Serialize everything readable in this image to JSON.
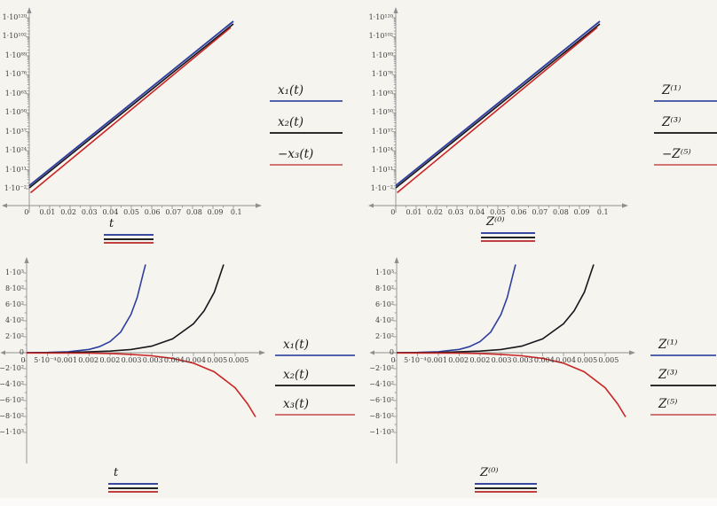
{
  "background": "#f6f4ef",
  "colors": {
    "axis": "#8f8f8f",
    "tick_text": "#3c3c3c",
    "curve_blue": "#2f3f9f",
    "curve_black": "#17171c",
    "curve_red": "#c92626",
    "legend_blue": "#5163ac",
    "legend_black": "#2d2d2d",
    "legend_red": "#d27474",
    "swatch_blue": "#39489f",
    "swatch_black": "#222222",
    "swatch_red": "#c04040"
  },
  "panels": [
    {
      "id": "top-left",
      "y_ticks": [
        "1·10¹²⁰",
        "1·10¹⁰²",
        "1·10⁸⁹",
        "1·10⁷⁶",
        "1·10⁶³",
        "1·10⁵⁰",
        "1·10³⁷",
        "1·10²⁴",
        "1·10¹¹",
        "1·10⁻²"
      ],
      "x_ticks": [
        "0",
        "0.01",
        "0.02",
        "0.03",
        "0.04",
        "0.05",
        "0.06",
        "0.07",
        "0.08",
        "0.09",
        "0.1"
      ],
      "legend": [
        {
          "label": "x₁(t)",
          "color": "#5163ac"
        },
        {
          "label": "x₂(t)",
          "color": "#2d2d2d"
        },
        {
          "label": "−x₃(t)",
          "color": "#d27474"
        }
      ],
      "axis_label": "t"
    },
    {
      "id": "top-right",
      "y_ticks": [
        "1·10¹²⁰",
        "1·10¹⁰²",
        "1·10⁸⁹",
        "1·10⁷⁶",
        "1·10⁶³",
        "1·10⁵⁰",
        "1·10³⁷",
        "1·10²⁴",
        "1·10¹¹",
        "1·10⁻²"
      ],
      "x_ticks": [
        "0",
        "0.01",
        "0.02",
        "0.03",
        "0.04",
        "0.05",
        "0.06",
        "0.07",
        "0.08",
        "0.09",
        "0.1"
      ],
      "legend": [
        {
          "label": "Z⁽¹⁾",
          "color": "#5163ac"
        },
        {
          "label": "Z⁽³⁾",
          "color": "#2d2d2d"
        },
        {
          "label": "−Z⁽⁵⁾",
          "color": "#d27474"
        }
      ],
      "axis_label": "Z⁽⁰⁾"
    },
    {
      "id": "bottom-left",
      "y_ticks": [
        "1·10³",
        "8·10²",
        "6·10²",
        "4·10²",
        "2·10²",
        "0",
        "−2·10²",
        "−4·10²",
        "−6·10²",
        "−8·10²",
        "−1·10³"
      ],
      "x_ticks": [
        "0",
        "5·10⁻⁴",
        "0.001",
        "0.002",
        "0.002",
        "0.003",
        "0.003",
        "0.004",
        "0.004",
        "0.005",
        "0.005"
      ],
      "legend": [
        {
          "label": "x₁(t)",
          "color": "#5163ac"
        },
        {
          "label": "x₂(t)",
          "color": "#2d2d2d"
        },
        {
          "label": "x₃(t)",
          "color": "#d27474"
        }
      ],
      "axis_label": "t"
    },
    {
      "id": "bottom-right",
      "y_ticks": [
        "1·10³",
        "8·10²",
        "6·10²",
        "4·10²",
        "2·10²",
        "0",
        "−2·10²",
        "−4·10²",
        "−6·10²",
        "−8·10²",
        "−1·10³"
      ],
      "x_ticks": [
        "0",
        "5·10⁻⁴",
        "0.001",
        "0.002",
        "0.002",
        "0.003",
        "0.003",
        "0.004",
        "0.004",
        "0.005",
        "0.005"
      ],
      "legend": [
        {
          "label": "Z⁽¹⁾",
          "color": "#5163ac"
        },
        {
          "label": "Z⁽³⁾",
          "color": "#2d2d2d"
        },
        {
          "label": "Z⁽⁵⁾",
          "color": "#d27474"
        }
      ],
      "axis_label": "Z⁽⁰⁾"
    }
  ],
  "chart_data": [
    {
      "type": "line",
      "panel": "top-left",
      "title": "",
      "xlabel": "t",
      "ylabel": "",
      "xscale": "linear",
      "yscale": "log",
      "xlim": [
        0,
        0.1
      ],
      "ylim": [
        0.01,
        1e+120
      ],
      "x_tick_labels": [
        "0",
        "0.01",
        "0.02",
        "0.03",
        "0.04",
        "0.05",
        "0.06",
        "0.07",
        "0.08",
        "0.09",
        "0.1"
      ],
      "y_tick_labels": [
        "1·10⁻²",
        "1·10¹¹",
        "1·10²⁴",
        "1·10³⁷",
        "1·10⁵⁰",
        "1·10⁶³",
        "1·10⁷⁶",
        "1·10⁸⁹",
        "1·10¹⁰²",
        "1·10¹²⁰"
      ],
      "legend_entries": [
        "x₁(t)",
        "x₂(t)",
        "−x₃(t)"
      ],
      "legend_position": "right-of-plot",
      "grid": false,
      "series": [
        {
          "name": "x₁(t)",
          "color": "#2f3f9f",
          "points_log10y": [
            [
              0,
              -1.8
            ],
            [
              0.05,
              58.0
            ],
            [
              0.1,
              118.0
            ]
          ]
        },
        {
          "name": "x₂(t)",
          "color": "#17171c",
          "points_log10y": [
            [
              0,
              -2.1
            ],
            [
              0.05,
              57.7
            ],
            [
              0.1,
              117.7
            ]
          ]
        },
        {
          "name": "−x₃(t)",
          "color": "#c92626",
          "points_log10y": [
            [
              0,
              -2.7
            ],
            [
              0.05,
              57.1
            ],
            [
              0.1,
              117.1
            ]
          ]
        }
      ],
      "description": "Three nearly coincident straight lines on a log-y axis: pure exponential growth from ~10⁻² at t=0 to ~10¹¹⁸ at t=0.1"
    },
    {
      "type": "line",
      "panel": "top-right",
      "title": "",
      "xlabel": "Z⁽⁰⁾",
      "ylabel": "",
      "xscale": "linear",
      "yscale": "log",
      "xlim": [
        0,
        0.1
      ],
      "ylim": [
        0.01,
        1e+120
      ],
      "x_tick_labels": [
        "0",
        "0.01",
        "0.02",
        "0.03",
        "0.04",
        "0.05",
        "0.06",
        "0.07",
        "0.08",
        "0.09",
        "0.1"
      ],
      "y_tick_labels": [
        "1·10⁻²",
        "1·10¹¹",
        "1·10²⁴",
        "1·10³⁷",
        "1·10⁵⁰",
        "1·10⁶³",
        "1·10⁷⁶",
        "1·10⁸⁹",
        "1·10¹⁰²",
        "1·10¹²⁰"
      ],
      "legend_entries": [
        "Z⁽¹⁾",
        "Z⁽³⁾",
        "−Z⁽⁵⁾"
      ],
      "legend_position": "right-of-plot",
      "grid": false,
      "series": [
        {
          "name": "Z⁽¹⁾",
          "color": "#2f3f9f",
          "points_log10y": [
            [
              0,
              -1.8
            ],
            [
              0.05,
              58.0
            ],
            [
              0.1,
              118.0
            ]
          ]
        },
        {
          "name": "Z⁽³⁾",
          "color": "#17171c",
          "points_log10y": [
            [
              0,
              -2.1
            ],
            [
              0.05,
              57.7
            ],
            [
              0.1,
              117.7
            ]
          ]
        },
        {
          "name": "−Z⁽⁵⁾",
          "color": "#c92626",
          "points_log10y": [
            [
              0,
              -2.7
            ],
            [
              0.05,
              57.1
            ],
            [
              0.1,
              117.1
            ]
          ]
        }
      ],
      "description": "Identical to top-left panel but for series Z: straight lines on log scale"
    },
    {
      "type": "line",
      "panel": "bottom-left",
      "title": "",
      "xlabel": "t",
      "ylabel": "",
      "xscale": "linear",
      "yscale": "linear",
      "xlim": [
        0,
        0.0055
      ],
      "ylim": [
        -1000,
        1000
      ],
      "x_tick_labels": [
        "0",
        "5·10⁻⁴",
        "0.001",
        "0.002",
        "0.002",
        "0.003",
        "0.003",
        "0.004",
        "0.004",
        "0.005",
        "0.005"
      ],
      "y_tick_labels": [
        "−1·10³",
        "−8·10²",
        "−6·10²",
        "−4·10²",
        "−2·10²",
        "0",
        "2·10²",
        "4·10²",
        "6·10²",
        "8·10²",
        "1·10³"
      ],
      "legend_entries": [
        "x₁(t)",
        "x₂(t)",
        "x₃(t)"
      ],
      "legend_position": "right-of-plot",
      "grid": false,
      "series": [
        {
          "name": "x₁(t)",
          "color": "#2f3f9f",
          "approx": "exp(t/4.05e-4)",
          "points": [
            [
              0,
              1
            ],
            [
              0.001,
              12
            ],
            [
              0.0015,
              41
            ],
            [
              0.002,
              139
            ],
            [
              0.0025,
              478
            ],
            [
              0.0028,
              1000
            ]
          ]
        },
        {
          "name": "x₂(t)",
          "color": "#17171c",
          "approx": "exp(t/6.8e-4)",
          "points": [
            [
              0,
              1
            ],
            [
              0.002,
              19
            ],
            [
              0.003,
              83
            ],
            [
              0.0035,
              173
            ],
            [
              0.004,
              362
            ],
            [
              0.0045,
              758
            ],
            [
              0.00475,
              1000
            ]
          ]
        },
        {
          "name": "x₃(t)",
          "color": "#c92626",
          "approx": "-exp(t/8.2e-4)",
          "points": [
            [
              0,
              -1
            ],
            [
              0.003,
              -39
            ],
            [
              0.0035,
              -72
            ],
            [
              0.004,
              -131
            ],
            [
              0.0045,
              -240
            ],
            [
              0.005,
              -440
            ],
            [
              0.0054,
              -800
            ]
          ]
        }
      ],
      "description": "Linear-scale view: blue diverges upward near t≈0.003, black near t≈0.005, red diverges downward near t≈0.005"
    },
    {
      "type": "line",
      "panel": "bottom-right",
      "title": "",
      "xlabel": "Z⁽⁰⁾",
      "ylabel": "",
      "xscale": "linear",
      "yscale": "linear",
      "xlim": [
        0,
        0.0055
      ],
      "ylim": [
        -1000,
        1000
      ],
      "x_tick_labels": [
        "0",
        "5·10⁻⁴",
        "0.001",
        "0.002",
        "0.002",
        "0.003",
        "0.003",
        "0.004",
        "0.004",
        "0.005",
        "0.005"
      ],
      "y_tick_labels": [
        "−1·10³",
        "−8·10²",
        "−6·10²",
        "−4·10²",
        "−2·10²",
        "0",
        "2·10²",
        "4·10²",
        "6·10²",
        "8·10²",
        "1·10³"
      ],
      "legend_entries": [
        "Z⁽¹⁾",
        "Z⁽³⁾",
        "Z⁽⁵⁾"
      ],
      "legend_position": "right-of-plot",
      "grid": false,
      "series": [
        {
          "name": "Z⁽¹⁾",
          "color": "#2f3f9f",
          "approx": "exp(x/4.05e-4)",
          "points": [
            [
              0,
              1
            ],
            [
              0.001,
              12
            ],
            [
              0.0015,
              41
            ],
            [
              0.002,
              139
            ],
            [
              0.0025,
              478
            ],
            [
              0.0028,
              1000
            ]
          ]
        },
        {
          "name": "Z⁽³⁾",
          "color": "#17171c",
          "approx": "exp(x/6.8e-4)",
          "points": [
            [
              0,
              1
            ],
            [
              0.002,
              19
            ],
            [
              0.003,
              83
            ],
            [
              0.0035,
              173
            ],
            [
              0.004,
              362
            ],
            [
              0.0045,
              758
            ],
            [
              0.00475,
              1000
            ]
          ]
        },
        {
          "name": "Z⁽⁵⁾",
          "color": "#c92626",
          "approx": "-exp(x/8.2e-4)",
          "points": [
            [
              0,
              -1
            ],
            [
              0.003,
              -39
            ],
            [
              0.0035,
              -72
            ],
            [
              0.004,
              -131
            ],
            [
              0.0045,
              -240
            ],
            [
              0.005,
              -440
            ],
            [
              0.0054,
              -800
            ]
          ]
        }
      ],
      "description": "Identical to bottom-left panel but for series Z"
    }
  ]
}
